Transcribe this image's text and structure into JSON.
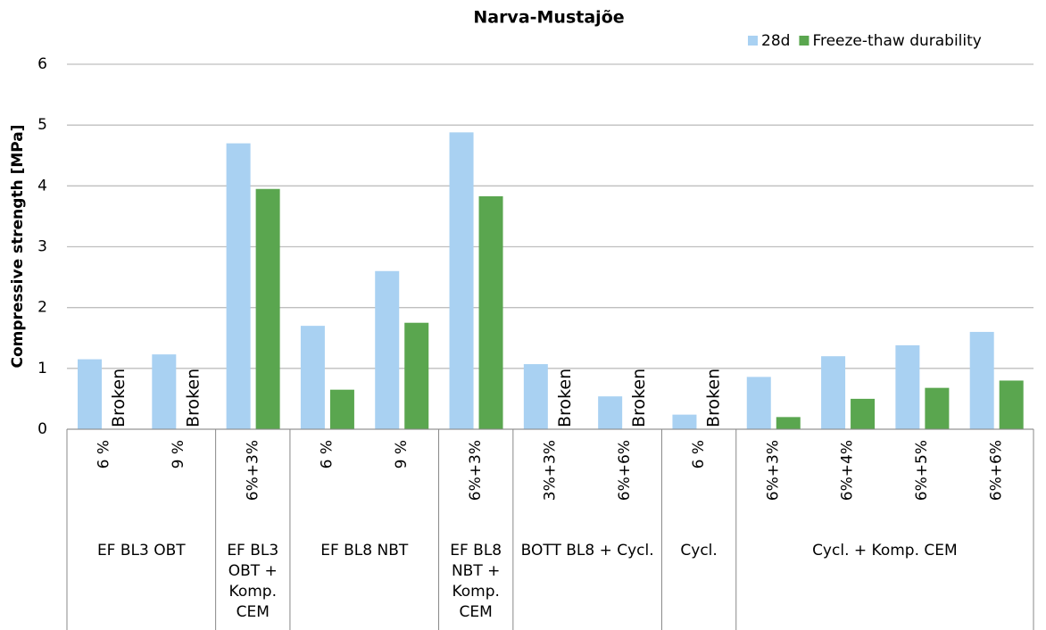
{
  "chart_data": {
    "type": "bar",
    "title": "Narva-Mustajõe",
    "y_label": "Compressive strength [MPa]",
    "categories": [
      {
        "group": "EF BL3 OBT",
        "label": "6 %"
      },
      {
        "group": "EF BL3 OBT",
        "label": "9 %"
      },
      {
        "group": "EF BL3 OBT + Komp. CEM",
        "label": "6%+3%"
      },
      {
        "group": "EF BL8 NBT",
        "label": "6 %"
      },
      {
        "group": "EF BL8 NBT",
        "label": "9 %"
      },
      {
        "group": "EF BL8 NBT + Komp. CEM",
        "label": "6%+3%"
      },
      {
        "group": "BOTT BL8 + Cycl.",
        "label": "3%+3%"
      },
      {
        "group": "BOTT BL8 + Cycl.",
        "label": "6%+6%"
      },
      {
        "group": "Cycl.",
        "label": "6 %"
      },
      {
        "group": "Cycl. + Komp. CEM",
        "label": "6%+3%"
      },
      {
        "group": "Cycl. + Komp. CEM",
        "label": "6%+4%"
      },
      {
        "group": "Cycl. + Komp. CEM",
        "label": "6%+5%"
      },
      {
        "group": "Cycl. + Komp. CEM",
        "label": "6%+6%"
      }
    ],
    "series": [
      {
        "name": "28d",
        "color": "#a9d1f2",
        "values": [
          1.15,
          1.23,
          4.7,
          1.7,
          2.6,
          4.88,
          1.07,
          0.54,
          0.24,
          0.86,
          1.2,
          1.38,
          1.6
        ]
      },
      {
        "name": "Freeze-thaw durability",
        "color": "#5aa64f",
        "values": [
          null,
          null,
          3.95,
          0.65,
          1.75,
          3.83,
          null,
          null,
          null,
          0.2,
          0.5,
          0.68,
          0.8
        ],
        "value_labels": [
          "Broken",
          "Broken",
          null,
          null,
          null,
          null,
          "Broken",
          "Broken",
          "Broken",
          null,
          null,
          null,
          null
        ]
      }
    ],
    "ylim": [
      0,
      6
    ],
    "yticks": [
      0,
      1,
      2,
      3,
      4,
      5,
      6
    ],
    "grid": true,
    "legend": "top-right"
  }
}
